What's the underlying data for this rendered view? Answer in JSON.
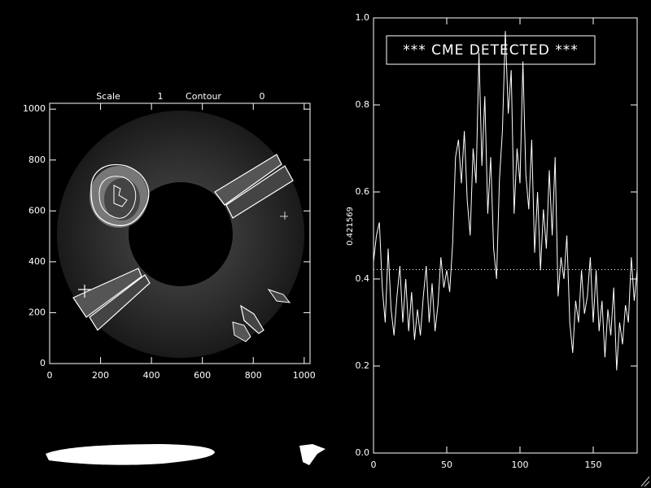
{
  "chart_data": [
    {
      "type": "image",
      "header": {
        "scale_label": "Scale",
        "scale_value": 1,
        "contour_label": "Contour",
        "contour_value": 0
      },
      "xlim": [
        0,
        1023
      ],
      "ylim": [
        0,
        1023
      ],
      "xticks": [
        0,
        200,
        400,
        600,
        800,
        1000
      ],
      "yticks": [
        0,
        200,
        400,
        600,
        800,
        1000
      ]
    },
    {
      "type": "line",
      "annotation": "*** CME DETECTED ***",
      "hline": {
        "value": 0.421569,
        "label": "0.421569"
      },
      "xlim": [
        0,
        180
      ],
      "ylim": [
        0,
        1
      ],
      "xticks": [
        0,
        50,
        100,
        150
      ],
      "yticks": [
        {
          "value": 0,
          "label": "0.0"
        },
        0.2,
        0.4,
        0.6,
        0.8,
        {
          "value": 1,
          "label": "1.0"
        }
      ],
      "color": "#ffffff",
      "x": [
        0,
        2,
        4,
        6,
        8,
        10,
        12,
        14,
        16,
        18,
        20,
        22,
        24,
        26,
        28,
        30,
        32,
        34,
        36,
        38,
        40,
        42,
        44,
        46,
        48,
        50,
        52,
        54,
        56,
        58,
        60,
        62,
        64,
        66,
        68,
        70,
        72,
        74,
        76,
        78,
        80,
        82,
        84,
        86,
        88,
        90,
        92,
        94,
        96,
        98,
        100,
        102,
        104,
        106,
        108,
        110,
        112,
        114,
        116,
        118,
        120,
        122,
        124,
        126,
        128,
        130,
        132,
        134,
        136,
        138,
        140,
        142,
        144,
        146,
        148,
        150,
        152,
        154,
        156,
        158,
        160,
        162,
        164,
        166,
        168,
        170,
        172,
        174,
        176,
        178,
        180
      ],
      "values": [
        0.44,
        0.5,
        0.53,
        0.38,
        0.3,
        0.47,
        0.33,
        0.27,
        0.36,
        0.43,
        0.3,
        0.4,
        0.28,
        0.37,
        0.26,
        0.33,
        0.27,
        0.36,
        0.43,
        0.3,
        0.39,
        0.28,
        0.34,
        0.45,
        0.38,
        0.42,
        0.37,
        0.48,
        0.68,
        0.72,
        0.62,
        0.74,
        0.58,
        0.5,
        0.7,
        0.62,
        0.92,
        0.66,
        0.82,
        0.55,
        0.68,
        0.47,
        0.4,
        0.63,
        0.74,
        0.97,
        0.78,
        0.88,
        0.55,
        0.7,
        0.62,
        0.9,
        0.64,
        0.56,
        0.72,
        0.46,
        0.6,
        0.42,
        0.56,
        0.47,
        0.65,
        0.5,
        0.68,
        0.36,
        0.45,
        0.4,
        0.5,
        0.3,
        0.23,
        0.35,
        0.3,
        0.42,
        0.32,
        0.36,
        0.45,
        0.3,
        0.42,
        0.28,
        0.35,
        0.22,
        0.33,
        0.27,
        0.38,
        0.19,
        0.3,
        0.25,
        0.34,
        0.3,
        0.45,
        0.35,
        0.42
      ]
    }
  ]
}
